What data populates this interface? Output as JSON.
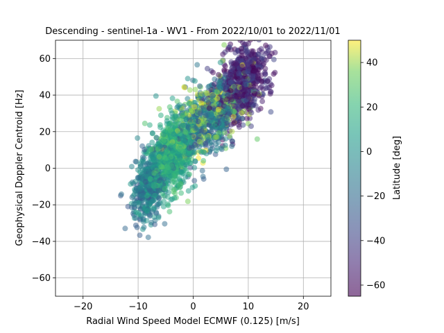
{
  "chart_data": {
    "type": "scatter",
    "title": "Descending - sentinel-1a - WV1 - From 2022/10/01 to 2022/11/01",
    "xlabel": "Radial Wind Speed Model ECMWF (0.125) [m/s]",
    "ylabel": "Geophysical Doppler Centroid [Hz]",
    "xlim": [
      -25,
      25
    ],
    "ylim": [
      -70,
      70
    ],
    "xticks": [
      -20,
      -10,
      0,
      10,
      20
    ],
    "yticks": [
      -60,
      -40,
      -20,
      0,
      20,
      40,
      60
    ],
    "grid": true,
    "marker_alpha": 0.5,
    "colorbar": {
      "label": "Latitude [deg]",
      "colormap": "viridis",
      "range": [
        -65,
        50
      ],
      "ticks": [
        -60,
        -40,
        -20,
        0,
        20,
        40
      ]
    },
    "point_clusters": [
      {
        "latitude_range": [
          -65,
          -35
        ],
        "x_center": 9,
        "x_spread": 5,
        "y_center": 52,
        "y_spread": 12,
        "count": 700
      },
      {
        "latitude_range": [
          -35,
          5
        ],
        "x_center": 2,
        "x_spread": 6,
        "y_center": 28,
        "y_spread": 16,
        "count": 500
      },
      {
        "latitude_range": [
          0,
          30
        ],
        "x_center": -4,
        "x_spread": 4,
        "y_center": 10,
        "y_spread": 15,
        "count": 700
      },
      {
        "latitude_range": [
          -30,
          10
        ],
        "x_center": -8,
        "x_spread": 3,
        "y_center": -12,
        "y_spread": 8,
        "count": 500
      },
      {
        "latitude_range": [
          30,
          50
        ],
        "x_center": 3,
        "x_spread": 8,
        "y_center": 38,
        "y_spread": 18,
        "count": 250
      }
    ],
    "x_y_relation": {
      "slope": 2.9,
      "intercept": 17,
      "scatter": 11
    }
  }
}
